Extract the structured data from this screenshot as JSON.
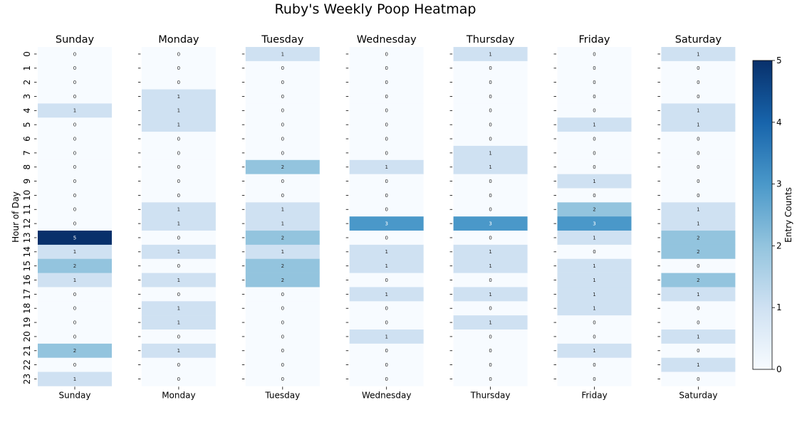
{
  "chart_data": {
    "type": "heatmap",
    "title": "Ruby's Weekly Poop Heatmap",
    "ylabel": "Hour of Day",
    "colorbar_label": "Entry Counts",
    "colorbar_range": [
      0,
      5
    ],
    "colorbar_ticks": [
      "0",
      "1",
      "2",
      "3",
      "4",
      "5"
    ],
    "colormap": "Blues",
    "hours": [
      "0",
      "1",
      "2",
      "3",
      "4",
      "5",
      "6",
      "7",
      "8",
      "9",
      "10",
      "11",
      "12",
      "13",
      "14",
      "15",
      "16",
      "17",
      "18",
      "19",
      "20",
      "21",
      "22",
      "23"
    ],
    "days": [
      {
        "name": "Sunday",
        "values": [
          0,
          0,
          0,
          0,
          1,
          0,
          0,
          0,
          0,
          0,
          0,
          0,
          0,
          5,
          1,
          2,
          1,
          0,
          0,
          0,
          0,
          2,
          0,
          1
        ]
      },
      {
        "name": "Monday",
        "values": [
          0,
          0,
          0,
          1,
          1,
          1,
          0,
          0,
          0,
          0,
          0,
          1,
          1,
          0,
          1,
          0,
          1,
          0,
          1,
          1,
          0,
          1,
          0,
          0
        ]
      },
      {
        "name": "Tuesday",
        "values": [
          1,
          0,
          0,
          0,
          0,
          0,
          0,
          0,
          2,
          0,
          0,
          1,
          1,
          2,
          1,
          2,
          2,
          0,
          0,
          0,
          0,
          0,
          0,
          0
        ]
      },
      {
        "name": "Wednesday",
        "values": [
          0,
          0,
          0,
          0,
          0,
          0,
          0,
          0,
          1,
          0,
          0,
          0,
          3,
          0,
          1,
          1,
          0,
          1,
          0,
          0,
          1,
          0,
          0,
          0
        ]
      },
      {
        "name": "Thursday",
        "values": [
          1,
          0,
          0,
          0,
          0,
          0,
          0,
          1,
          1,
          0,
          0,
          0,
          3,
          0,
          1,
          1,
          0,
          1,
          0,
          1,
          0,
          0,
          0,
          0
        ]
      },
      {
        "name": "Friday",
        "values": [
          0,
          0,
          0,
          0,
          0,
          1,
          0,
          0,
          0,
          1,
          0,
          2,
          3,
          1,
          0,
          1,
          1,
          1,
          1,
          0,
          0,
          1,
          0,
          0
        ]
      },
      {
        "name": "Saturday",
        "values": [
          1,
          0,
          0,
          0,
          1,
          1,
          0,
          0,
          0,
          0,
          0,
          1,
          1,
          2,
          2,
          0,
          2,
          1,
          0,
          0,
          1,
          0,
          1,
          0
        ]
      }
    ]
  }
}
